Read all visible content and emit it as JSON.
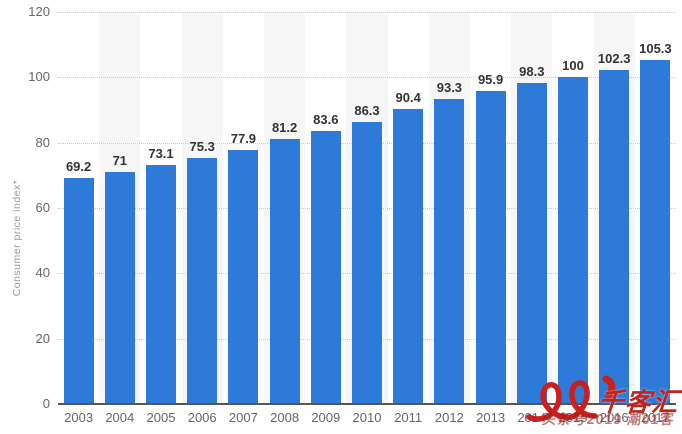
{
  "chart_data": {
    "type": "bar",
    "title": "",
    "xlabel": "",
    "ylabel": "Consumer price index*",
    "categories": [
      "2003",
      "2004",
      "2005",
      "2006",
      "2007",
      "2008",
      "2009",
      "2010",
      "2011",
      "2012",
      "2013",
      "2014",
      "2015",
      "2016",
      "2017"
    ],
    "values": [
      69.2,
      71,
      73.1,
      75.3,
      77.9,
      81.2,
      83.6,
      86.3,
      90.4,
      93.3,
      95.9,
      98.3,
      100,
      102.3,
      105.3
    ],
    "value_labels": [
      "69.2",
      "71",
      "73.1",
      "75.3",
      "77.9",
      "81.2",
      "83.6",
      "86.3",
      "90.4",
      "93.3",
      "95.9",
      "98.3",
      "100",
      "102.3",
      "105.3"
    ],
    "ylim": [
      0,
      120
    ],
    "yticks": [
      0,
      20,
      40,
      60,
      80,
      100,
      120
    ],
    "grid": "horizontal-dotted",
    "legend": null,
    "plot_bands": "alternating-column-shading",
    "colors": {
      "bar": "#2e7ad9",
      "band": "#f6f6f6",
      "gridline": "#cccccc",
      "axis_line": "#555555",
      "value_label": "#333333",
      "tick_label": "#666666",
      "ylabel_text": "#999999"
    }
  },
  "watermark": {
    "logo_icon": "red-cursive-signature-logo",
    "brand_text": "千客汇",
    "caption_text": "头条号2019 潮01客",
    "color": "#c9201d"
  }
}
